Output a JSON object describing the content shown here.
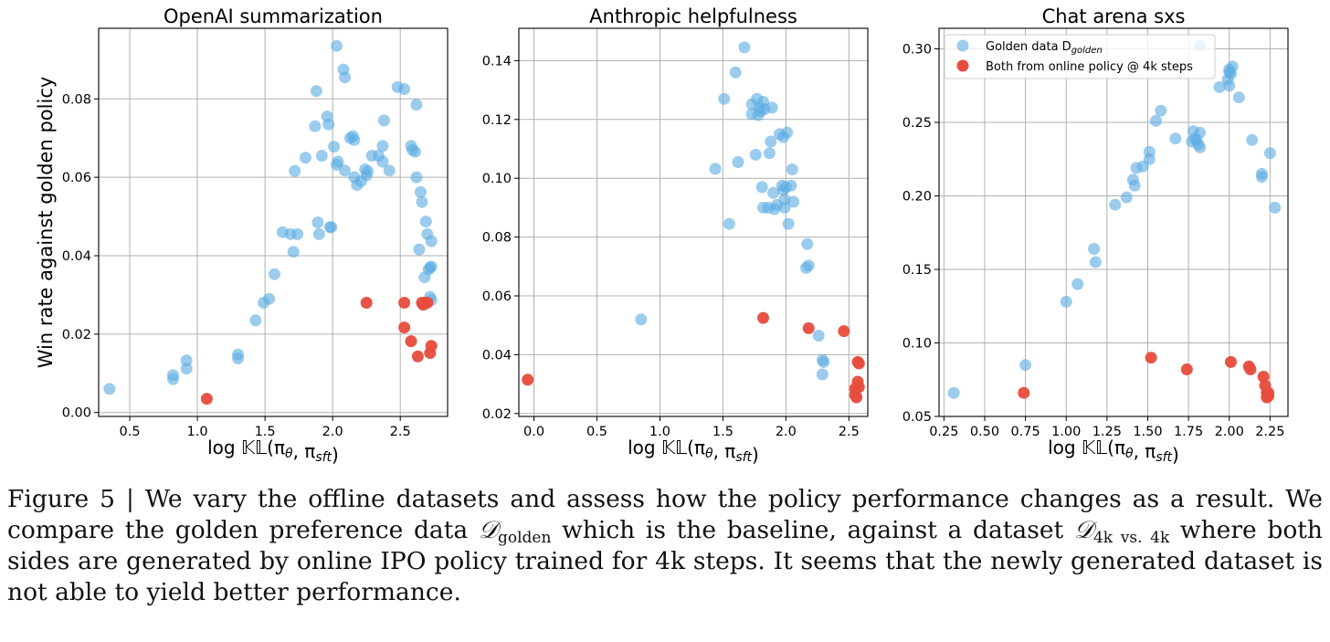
{
  "figure": {
    "legend": {
      "golden_label": "Golden data D",
      "golden_subscript": "golden",
      "online_label": "Both from online policy @ 4k steps"
    },
    "colors": {
      "golden": "#5DADE2",
      "online": "#E74C3C",
      "grid": "#b0b0b0"
    }
  },
  "chart_data": [
    {
      "type": "scatter",
      "title": "OpenAI summarization",
      "xlabel": "log 𝕂𝕃(πθ, πsft)",
      "ylabel": "Win rate against golden policy",
      "xlim": [
        0.27,
        2.85
      ],
      "ylim": [
        -0.001,
        0.098
      ],
      "xticks": [
        "0.5",
        "1.0",
        "1.5",
        "2.0",
        "2.5"
      ],
      "xtick_values": [
        0.5,
        1.0,
        1.5,
        2.0,
        2.5
      ],
      "yticks": [
        "0.00",
        "0.02",
        "0.04",
        "0.06",
        "0.08"
      ],
      "ytick_values": [
        0.0,
        0.02,
        0.04,
        0.06,
        0.08
      ],
      "grid": true,
      "series": [
        {
          "name": "Golden data D golden",
          "points": [
            [
              0.35,
              0.006
            ],
            [
              0.82,
              0.0095
            ],
            [
              0.82,
              0.0085
            ],
            [
              0.92,
              0.0133
            ],
            [
              0.92,
              0.0112
            ],
            [
              1.3,
              0.0148
            ],
            [
              1.3,
              0.0138
            ],
            [
              1.43,
              0.0235
            ],
            [
              1.49,
              0.028
            ],
            [
              1.53,
              0.029
            ],
            [
              1.57,
              0.0353
            ],
            [
              1.63,
              0.046
            ],
            [
              1.69,
              0.0455
            ],
            [
              1.71,
              0.041
            ],
            [
              1.74,
              0.0455
            ],
            [
              1.72,
              0.0616
            ],
            [
              1.8,
              0.065
            ],
            [
              1.87,
              0.073
            ],
            [
              1.88,
              0.082
            ],
            [
              1.89,
              0.0485
            ],
            [
              1.9,
              0.0455
            ],
            [
              1.92,
              0.0655
            ],
            [
              1.96,
              0.0755
            ],
            [
              1.97,
              0.0735
            ],
            [
              1.98,
              0.0473
            ],
            [
              1.99,
              0.0473
            ],
            [
              2.01,
              0.0678
            ],
            [
              2.03,
              0.0632
            ],
            [
              2.04,
              0.064
            ],
            [
              2.03,
              0.0935
            ],
            [
              2.08,
              0.0875
            ],
            [
              2.09,
              0.0855
            ],
            [
              2.09,
              0.0617
            ],
            [
              2.13,
              0.07
            ],
            [
              2.15,
              0.0705
            ],
            [
              2.16,
              0.0695
            ],
            [
              2.16,
              0.06
            ],
            [
              2.18,
              0.058
            ],
            [
              2.21,
              0.059
            ],
            [
              2.24,
              0.062
            ],
            [
              2.25,
              0.0605
            ],
            [
              2.26,
              0.0615
            ],
            [
              2.29,
              0.0655
            ],
            [
              2.34,
              0.0655
            ],
            [
              2.37,
              0.068
            ],
            [
              2.37,
              0.064
            ],
            [
              2.38,
              0.0745
            ],
            [
              2.42,
              0.0617
            ],
            [
              2.48,
              0.083
            ],
            [
              2.53,
              0.0825
            ],
            [
              2.58,
              0.068
            ],
            [
              2.59,
              0.067
            ],
            [
              2.61,
              0.0665
            ],
            [
              2.62,
              0.0785
            ],
            [
              2.62,
              0.06
            ],
            [
              2.64,
              0.0416
            ],
            [
              2.65,
              0.0562
            ],
            [
              2.66,
              0.0537
            ],
            [
              2.68,
              0.0345
            ],
            [
              2.69,
              0.0487
            ],
            [
              2.7,
              0.0455
            ],
            [
              2.71,
              0.0365
            ],
            [
              2.72,
              0.037
            ],
            [
              2.72,
              0.0295
            ],
            [
              2.73,
              0.0287
            ],
            [
              2.73,
              0.0437
            ],
            [
              2.73,
              0.0372
            ]
          ]
        },
        {
          "name": "Both from online policy @ 4k steps",
          "points": [
            [
              1.07,
              0.0035
            ],
            [
              2.25,
              0.028
            ],
            [
              2.53,
              0.028
            ],
            [
              2.53,
              0.0217
            ],
            [
              2.58,
              0.0182
            ],
            [
              2.63,
              0.0143
            ],
            [
              2.66,
              0.028
            ],
            [
              2.67,
              0.0275
            ],
            [
              2.68,
              0.028
            ],
            [
              2.7,
              0.028
            ],
            [
              2.72,
              0.0152
            ],
            [
              2.73,
              0.017
            ]
          ]
        }
      ]
    },
    {
      "type": "scatter",
      "title": "Anthropic helpfulness",
      "xlabel": "log 𝕂𝕃(πθ, πsft)",
      "ylabel": "",
      "xlim": [
        -0.12,
        2.65
      ],
      "ylim": [
        0.019,
        0.151
      ],
      "xticks": [
        "0.0",
        "0.5",
        "1.0",
        "1.5",
        "2.0",
        "2.5"
      ],
      "xtick_values": [
        0.0,
        0.5,
        1.0,
        1.5,
        2.0,
        2.5
      ],
      "yticks": [
        "0.02",
        "0.04",
        "0.06",
        "0.08",
        "0.10",
        "0.12",
        "0.14"
      ],
      "ytick_values": [
        0.02,
        0.04,
        0.06,
        0.08,
        0.1,
        0.12,
        0.14
      ],
      "grid": true,
      "series": [
        {
          "name": "Golden data D golden",
          "points": [
            [
              0.85,
              0.052
            ],
            [
              1.44,
              0.1032
            ],
            [
              1.51,
              0.127
            ],
            [
              1.55,
              0.0845
            ],
            [
              1.6,
              0.136
            ],
            [
              1.62,
              0.1055
            ],
            [
              1.67,
              0.1445
            ],
            [
              1.73,
              0.1252
            ],
            [
              1.73,
              0.1218
            ],
            [
              1.76,
              0.108
            ],
            [
              1.77,
              0.127
            ],
            [
              1.78,
              0.1215
            ],
            [
              1.79,
              0.124
            ],
            [
              1.8,
              0.1228
            ],
            [
              1.81,
              0.097
            ],
            [
              1.82,
              0.09
            ],
            [
              1.82,
              0.126
            ],
            [
              1.83,
              0.1235
            ],
            [
              1.86,
              0.09
            ],
            [
              1.87,
              0.1085
            ],
            [
              1.88,
              0.1125
            ],
            [
              1.89,
              0.124
            ],
            [
              1.9,
              0.095
            ],
            [
              1.91,
              0.0895
            ],
            [
              1.93,
              0.091
            ],
            [
              1.95,
              0.115
            ],
            [
              1.97,
              0.0975
            ],
            [
              1.98,
              0.114
            ],
            [
              1.98,
              0.096
            ],
            [
              1.99,
              0.09
            ],
            [
              1.99,
              0.0928
            ],
            [
              2.0,
              0.097
            ],
            [
              2.01,
              0.1155
            ],
            [
              2.02,
              0.0845
            ],
            [
              2.04,
              0.0975
            ],
            [
              2.05,
              0.103
            ],
            [
              2.06,
              0.092
            ],
            [
              2.16,
              0.0695
            ],
            [
              2.17,
              0.0776
            ],
            [
              2.18,
              0.0703
            ],
            [
              2.26,
              0.0465
            ],
            [
              2.29,
              0.0382
            ],
            [
              2.29,
              0.0333
            ],
            [
              2.3,
              0.0375
            ]
          ]
        },
        {
          "name": "Both from online policy @ 4k steps",
          "points": [
            [
              -0.05,
              0.0315
            ],
            [
              1.82,
              0.0525
            ],
            [
              2.18,
              0.049
            ],
            [
              2.46,
              0.048
            ],
            [
              2.55,
              0.0285
            ],
            [
              2.55,
              0.0263
            ],
            [
              2.56,
              0.0255
            ],
            [
              2.57,
              0.0375
            ],
            [
              2.57,
              0.0308
            ],
            [
              2.58,
              0.037
            ],
            [
              2.58,
              0.029
            ]
          ]
        }
      ]
    },
    {
      "type": "scatter",
      "title": "Chat arena sxs",
      "xlabel": "log 𝕂𝕃(πθ, πsft)",
      "ylabel": "",
      "xlim": [
        0.22,
        2.36
      ],
      "ylim": [
        0.05,
        0.314
      ],
      "xticks": [
        "0.25",
        "0.50",
        "0.75",
        "1.00",
        "1.25",
        "1.50",
        "1.75",
        "2.00",
        "2.25"
      ],
      "xtick_values": [
        0.25,
        0.5,
        0.75,
        1.0,
        1.25,
        1.5,
        1.75,
        2.0,
        2.25
      ],
      "yticks": [
        "0.05",
        "0.10",
        "0.15",
        "0.20",
        "0.25",
        "0.30"
      ],
      "ytick_values": [
        0.05,
        0.1,
        0.15,
        0.2,
        0.25,
        0.3
      ],
      "grid": true,
      "legend_position": "top-left",
      "series": [
        {
          "name": "Golden data D golden",
          "points": [
            [
              0.31,
              0.066
            ],
            [
              0.75,
              0.085
            ],
            [
              1.0,
              0.128
            ],
            [
              1.07,
              0.14
            ],
            [
              1.17,
              0.164
            ],
            [
              1.18,
              0.155
            ],
            [
              1.3,
              0.194
            ],
            [
              1.37,
              0.199
            ],
            [
              1.41,
              0.211
            ],
            [
              1.42,
              0.207
            ],
            [
              1.43,
              0.219
            ],
            [
              1.47,
              0.22
            ],
            [
              1.51,
              0.225
            ],
            [
              1.51,
              0.23
            ],
            [
              1.55,
              0.251
            ],
            [
              1.58,
              0.258
            ],
            [
              1.67,
              0.239
            ],
            [
              1.77,
              0.237
            ],
            [
              1.78,
              0.244
            ],
            [
              1.79,
              0.239
            ],
            [
              1.8,
              0.238
            ],
            [
              1.81,
              0.235
            ],
            [
              1.82,
              0.243
            ],
            [
              1.82,
              0.233
            ],
            [
              1.82,
              0.302
            ],
            [
              1.94,
              0.274
            ],
            [
              1.99,
              0.279
            ],
            [
              2.0,
              0.284
            ],
            [
              2.0,
              0.275
            ],
            [
              2.0,
              0.286
            ],
            [
              2.01,
              0.283
            ],
            [
              2.02,
              0.288
            ],
            [
              2.06,
              0.267
            ],
            [
              2.14,
              0.238
            ],
            [
              2.2,
              0.215
            ],
            [
              2.2,
              0.213
            ],
            [
              2.25,
              0.229
            ],
            [
              2.28,
              0.192
            ]
          ]
        },
        {
          "name": "Both from online policy @ 4k steps",
          "points": [
            [
              0.74,
              0.066
            ],
            [
              1.52,
              0.09
            ],
            [
              1.74,
              0.082
            ],
            [
              2.01,
              0.087
            ],
            [
              2.12,
              0.084
            ],
            [
              2.13,
              0.082
            ],
            [
              2.21,
              0.077
            ],
            [
              2.22,
              0.071
            ],
            [
              2.23,
              0.063
            ],
            [
              2.23,
              0.066
            ],
            [
              2.24,
              0.064
            ],
            [
              2.24,
              0.066
            ]
          ]
        }
      ]
    }
  ],
  "caption": {
    "prefix": "Figure 5 | We vary the offline datasets and assess how the policy performance changes as a result. We compare the golden preference data ",
    "math1": "𝒟",
    "sub1": "golden",
    "middle": " which is the baseline, against a dataset ",
    "math2": "𝒟",
    "sub2": "4k vs. 4k",
    "suffix": " where both sides are generated by online IPO policy trained for 4k steps. It seems that the newly generated dataset is not able to yield better performance."
  }
}
